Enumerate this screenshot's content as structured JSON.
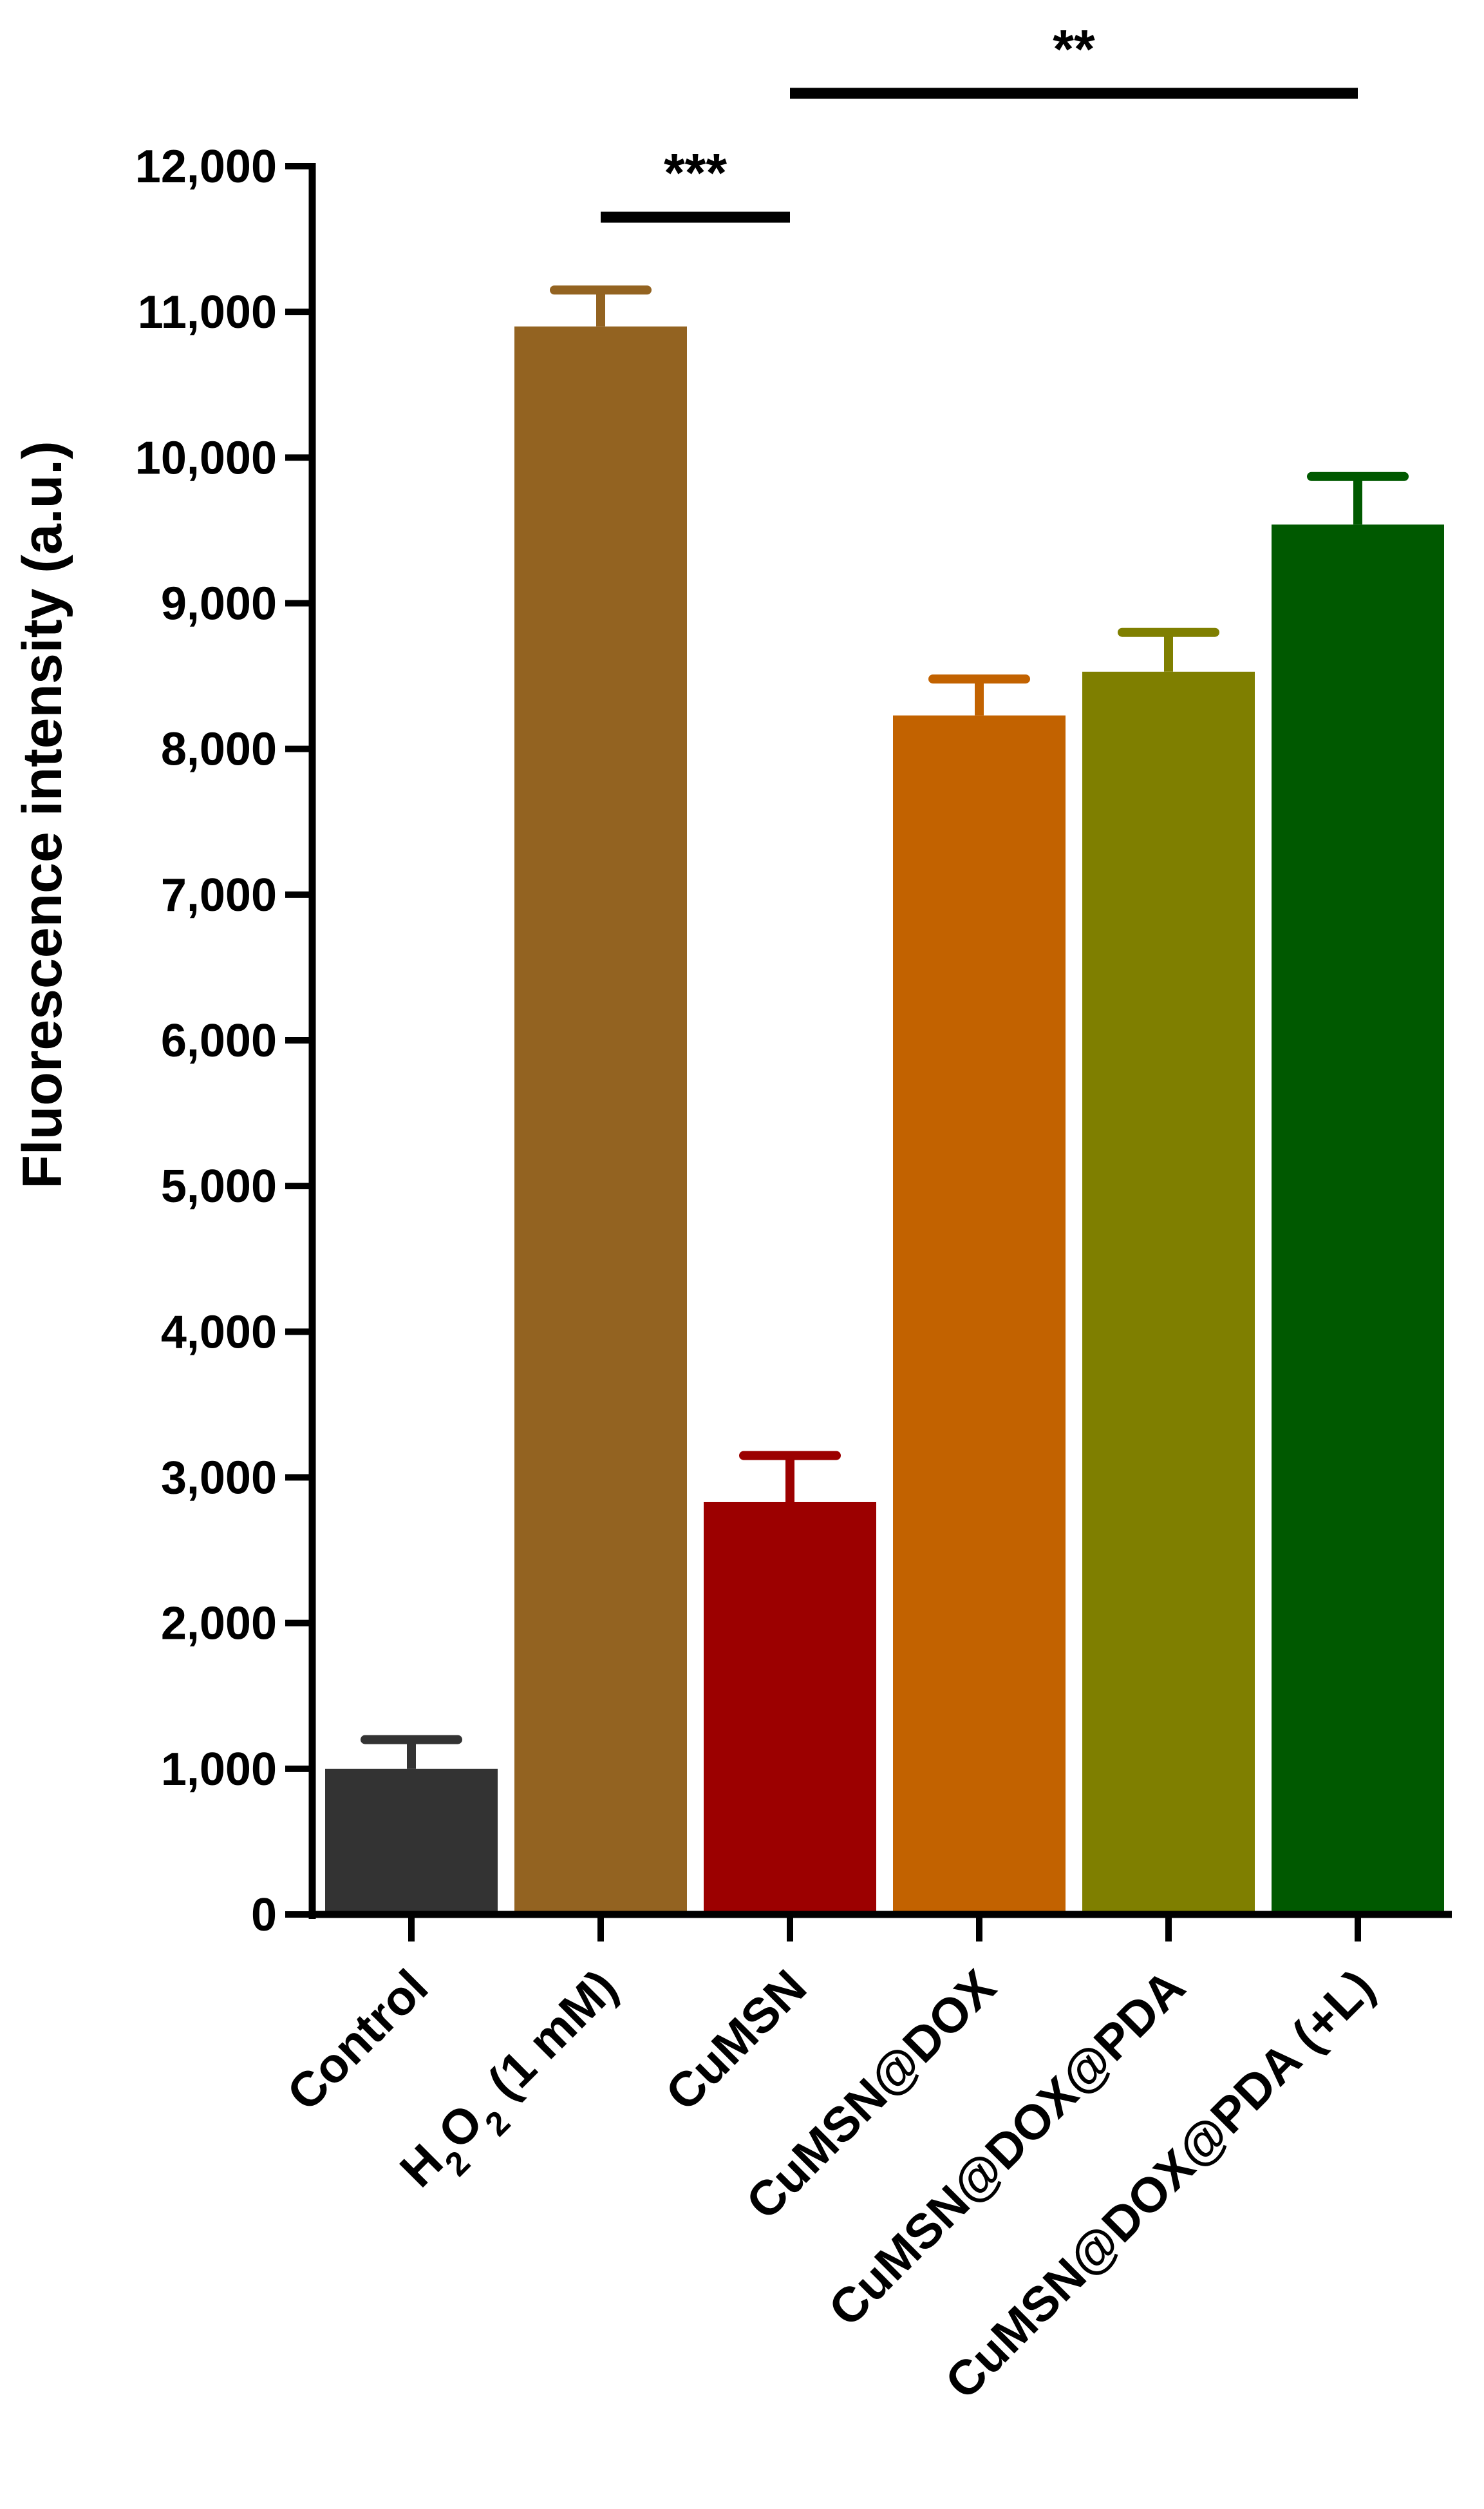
{
  "chart_data": {
    "type": "bar",
    "ylabel": "Fluorescence intensity (a.u.)",
    "ylim": [
      0,
      12000
    ],
    "yticks": [
      0,
      1000,
      2000,
      3000,
      4000,
      5000,
      6000,
      7000,
      8000,
      9000,
      10000,
      11000,
      12000
    ],
    "ytick_labels": [
      "0",
      "1,000",
      "2,000",
      "3,000",
      "4,000",
      "5,000",
      "6,000",
      "7,000",
      "8,000",
      "9,000",
      "10,000",
      "11,000",
      "12,000"
    ],
    "categories": [
      {
        "label": "Control"
      },
      {
        "label": "H",
        "sub1": "2",
        "mid": "O",
        "sub2": "2",
        "tail": " (1 mM)"
      },
      {
        "label": "CuMSN"
      },
      {
        "label": "CuMSN@DOX"
      },
      {
        "label": "CuMSN@DOX@PDA"
      },
      {
        "label": "CuMSN@DOX@PDA (+L)"
      }
    ],
    "values": [
      1000,
      10900,
      2830,
      8230,
      8530,
      9540
    ],
    "errors": [
      200,
      250,
      320,
      250,
      270,
      330
    ],
    "colors": [
      "#333333",
      "#936321",
      "#9c0000",
      "#c26200",
      "#7f7f00",
      "#005900"
    ],
    "significance": [
      {
        "from": 1,
        "to": 2,
        "label": "***"
      },
      {
        "from": 2,
        "to": 5,
        "label": "**"
      }
    ]
  }
}
